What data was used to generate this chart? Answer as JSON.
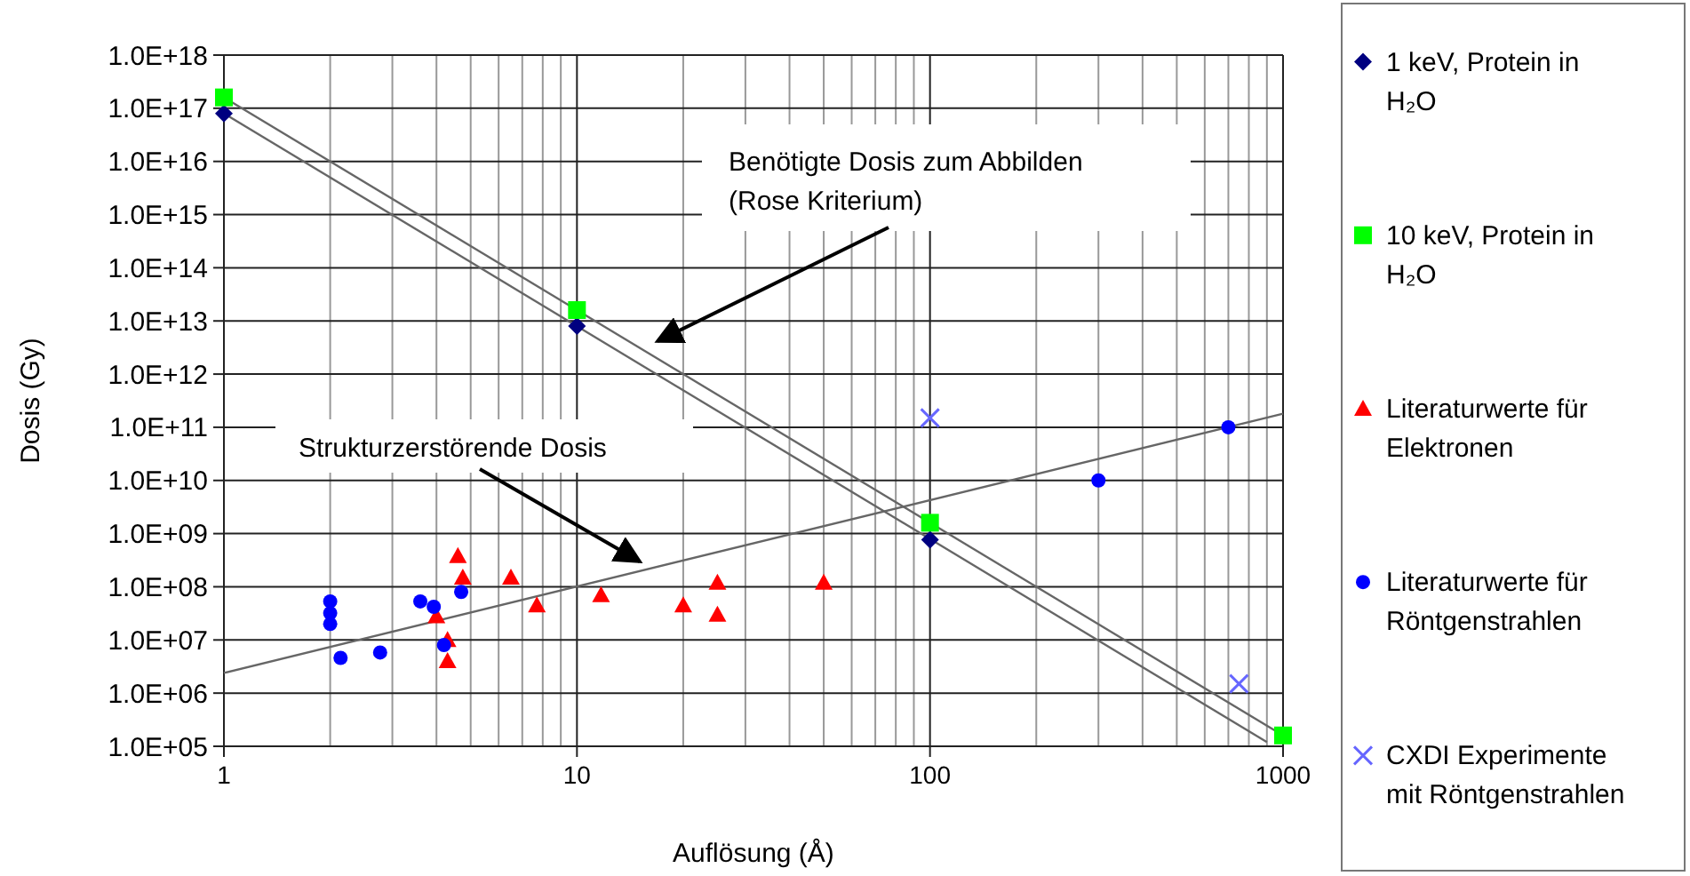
{
  "chart_data": {
    "type": "scatter",
    "xlabel": "Auflösung (Å)",
    "ylabel": "Dosis (Gy)",
    "log": "xy",
    "grid": true,
    "legend": "right",
    "xlim": [
      1,
      1000
    ],
    "xticks": [
      1,
      10,
      100,
      1000
    ],
    "ylim": [
      100000.0,
      1e+18
    ],
    "yticks": [
      {
        "value": 100000.0,
        "label": "1.0E+05"
      },
      {
        "value": 1000000.0,
        "label": "1.0E+06"
      },
      {
        "value": 10000000.0,
        "label": "1.0E+07"
      },
      {
        "value": 100000000.0,
        "label": "1.0E+08"
      },
      {
        "value": 1000000000.0,
        "label": "1.0E+09"
      },
      {
        "value": 10000000000.0,
        "label": "1.0E+10"
      },
      {
        "value": 100000000000.0,
        "label": "1.0E+11"
      },
      {
        "value": 1000000000000.0,
        "label": "1.0E+12"
      },
      {
        "value": 10000000000000.0,
        "label": "1.0E+13"
      },
      {
        "value": 100000000000000.0,
        "label": "1.0E+14"
      },
      {
        "value": 1000000000000000.0,
        "label": "1.0E+15"
      },
      {
        "value": 1e+16,
        "label": "1.0E+16"
      },
      {
        "value": 1e+17,
        "label": "1.0E+17"
      },
      {
        "value": 1e+18,
        "label": "1.0E+18"
      }
    ],
    "series": [
      {
        "type": "line",
        "marker": "none",
        "color": "#666666",
        "x": [
          1,
          1000
        ],
        "values": [
          1.6e+17,
          160000.0
        ]
      },
      {
        "type": "line",
        "marker": "none",
        "color": "#666666",
        "x": [
          1,
          900
        ],
        "values": [
          8e+16,
          120000.0
        ]
      },
      {
        "type": "line",
        "marker": "none",
        "color": "#666666",
        "x": [
          1,
          1000
        ],
        "values": [
          2400000.0,
          180000000000.0
        ]
      },
      {
        "name": "1 keV, Protein in H₂O",
        "marker": "diamond",
        "color": "#000080",
        "x": [
          1,
          10,
          100
        ],
        "values": [
          8e+16,
          8000000000000.0,
          770000000.0
        ]
      },
      {
        "name": "10 keV, Protein in H₂O",
        "marker": "square",
        "color": "#00ff00",
        "x": [
          1,
          10,
          100,
          1000
        ],
        "values": [
          1.6e+17,
          16000000000000.0,
          1600000000.0,
          160000.0
        ]
      },
      {
        "name": "Literaturwerte für Elektronen",
        "marker": "triangle",
        "color": "#ff0000",
        "x": [
          4.6,
          4.75,
          6.5,
          7.7,
          11.7,
          4.0,
          4.3,
          4.3,
          20,
          25,
          25,
          50
        ],
        "values": [
          380000000.0,
          150000000.0,
          150000000.0,
          45000000.0,
          70000000.0,
          28000000.0,
          10000000.0,
          4000000.0,
          45000000.0,
          120000000.0,
          30000000.0,
          120000000.0
        ]
      },
      {
        "name": "Literaturwerte für Röntgenstrahlen",
        "marker": "circle",
        "color": "#0000ff",
        "x": [
          2,
          2,
          2,
          2.14,
          2.77,
          3.6,
          3.93,
          4.7,
          4.2,
          300,
          700
        ],
        "values": [
          53000000.0,
          32000000.0,
          20000000.0,
          4600000.0,
          5800000.0,
          53000000.0,
          42000000.0,
          80000000.0,
          8000000.0,
          10000000000.0,
          100000000000.0
        ]
      },
      {
        "name": "CXDI Experimente mit Röntgenstrahlen",
        "marker": "cross",
        "color": "#6666ff",
        "x": [
          100,
          750
        ],
        "values": [
          150000000000.0,
          1500000.0
        ]
      }
    ],
    "annotations": [
      "Benötigte Dosis zum Abbilden (Rose Kriterium)",
      "Strukturzerstörende Dosis"
    ]
  }
}
